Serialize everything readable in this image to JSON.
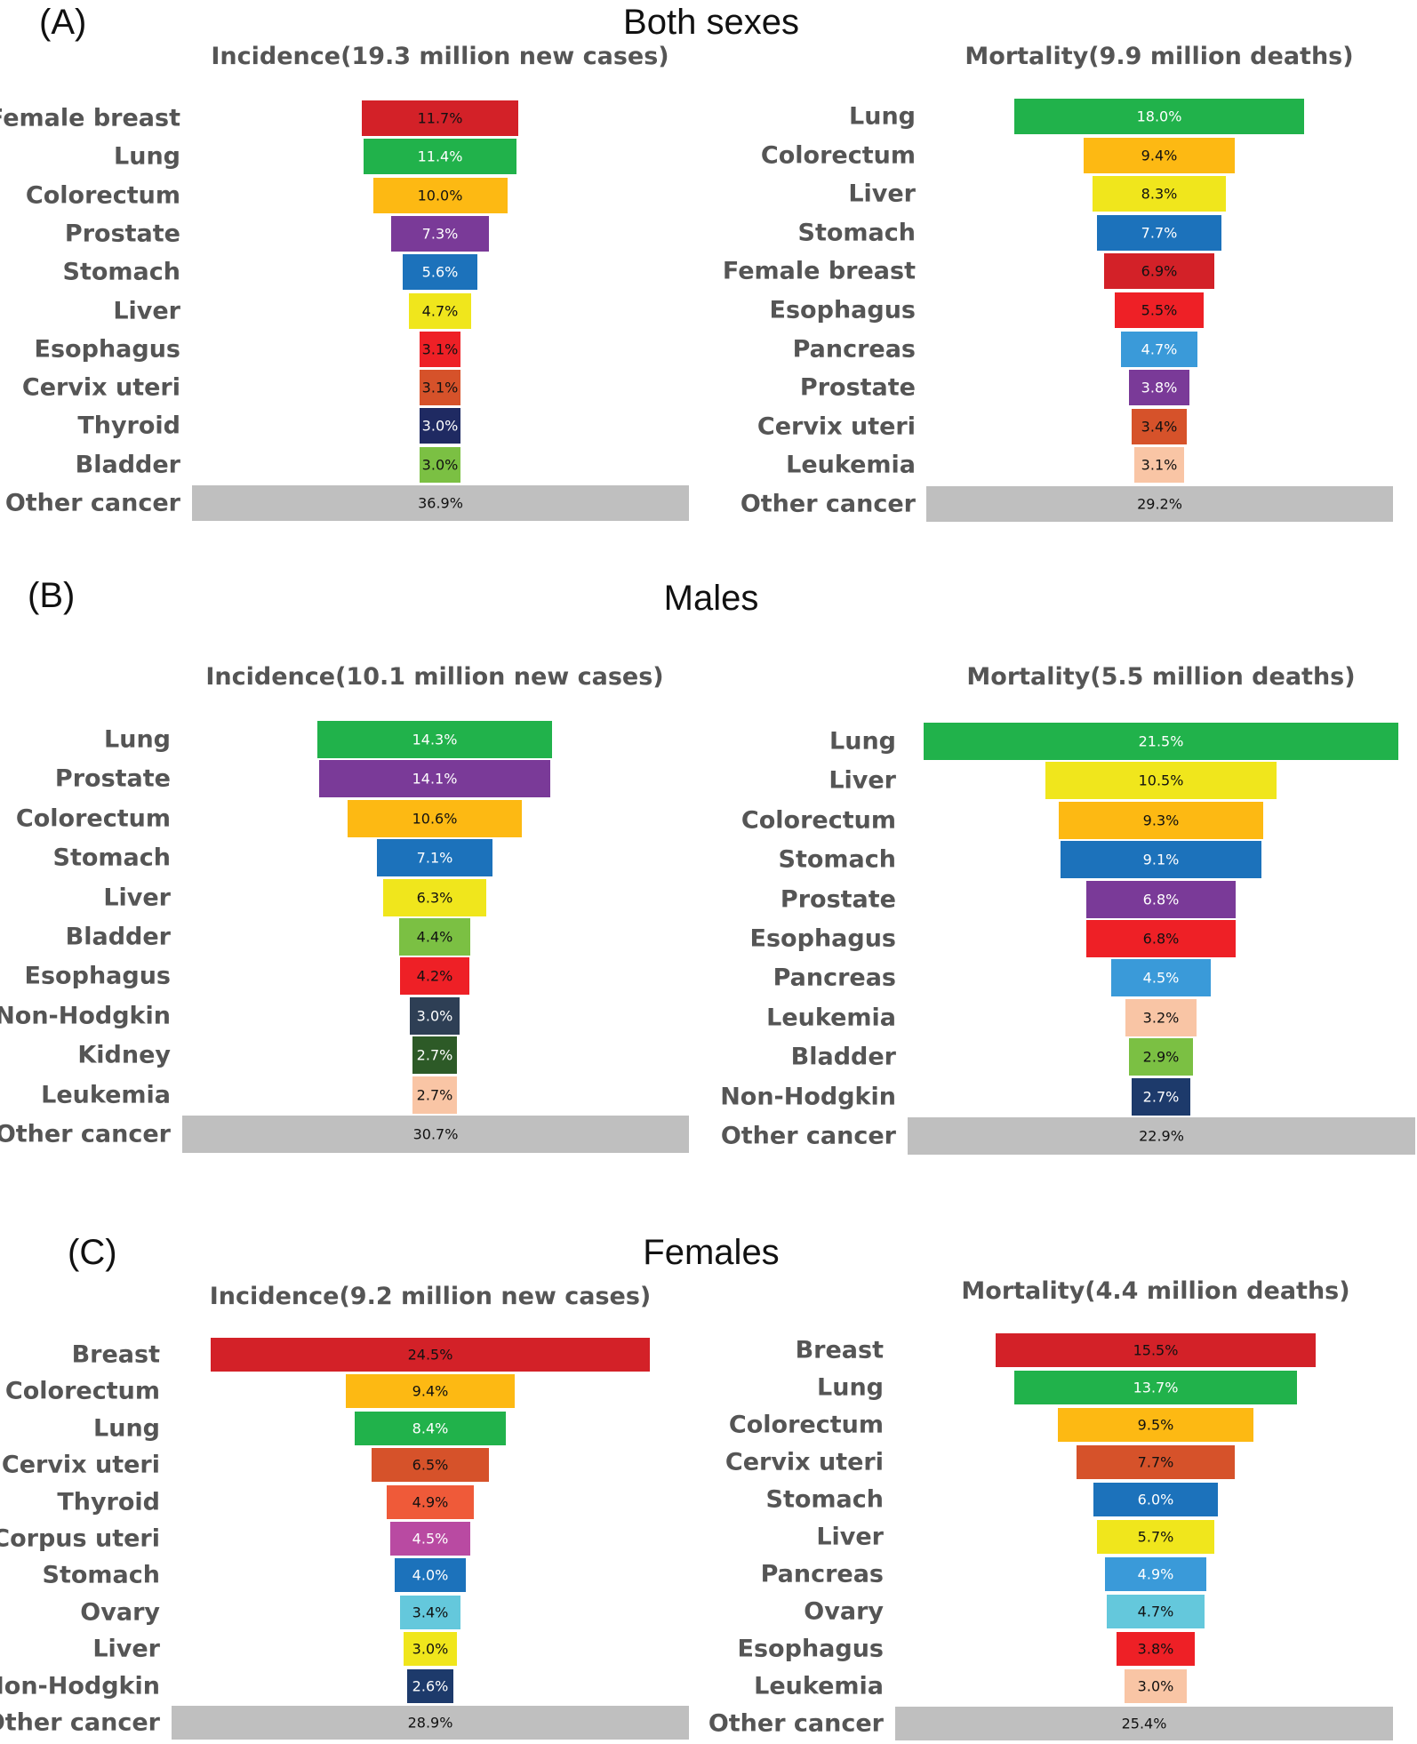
{
  "panels": [
    {
      "letter": "(A)",
      "title": "Both sexes"
    },
    {
      "letter": "(B)",
      "title": "Males"
    },
    {
      "letter": "(C)",
      "title": "Females"
    }
  ],
  "colors": {
    "red": "#d32128",
    "brightred": "#ee2026",
    "green": "#21b24b",
    "orange": "#fdb913",
    "purple": "#7a3a98",
    "blue": "#1c72bb",
    "yellow": "#f0e61c",
    "orangered": "#d6522a",
    "navy": "#1f2a62",
    "lightgreen": "#7bc043",
    "skyblue": "#3a9ad9",
    "peach": "#f9c5a5",
    "slate": "#2e3f55",
    "darkgreen": "#2d5a27",
    "coral": "#ef5a39",
    "magenta": "#b94aa2",
    "cyan": "#64c8dc",
    "darknavy": "#1d3a6b",
    "gray": "#bfbfbf"
  },
  "chart_data": [
    {
      "type": "bar",
      "panel": "(A)",
      "title": "Incidence(19.3 million new cases)",
      "categories": [
        "Female breast",
        "Lung",
        "Colorectum",
        "Prostate",
        "Stomach",
        "Liver",
        "Esophagus",
        "Cervix uteri",
        "Thyroid",
        "Bladder",
        "Other cancer"
      ],
      "values": [
        11.7,
        11.4,
        10.0,
        7.3,
        5.6,
        4.7,
        3.1,
        3.1,
        3.0,
        3.0,
        36.9
      ],
      "value_labels": [
        "11.7%",
        "11.4%",
        "10.0%",
        "7.3%",
        "5.6%",
        "4.7%",
        "3.1%",
        "3.1%",
        "3.0%",
        "3.0%",
        "36.9%"
      ],
      "colors": [
        "red",
        "green",
        "orange",
        "purple",
        "blue",
        "yellow",
        "brightred",
        "orangered",
        "navy",
        "lightgreen",
        "gray"
      ]
    },
    {
      "type": "bar",
      "panel": "(A)",
      "title": "Mortality(9.9 million deaths)",
      "categories": [
        "Lung",
        "Colorectum",
        "Liver",
        "Stomach",
        "Female breast",
        "Esophagus",
        "Pancreas",
        "Prostate",
        "Cervix uteri",
        "Leukemia",
        "Other cancer"
      ],
      "values": [
        18.0,
        9.4,
        8.3,
        7.7,
        6.9,
        5.5,
        4.7,
        3.8,
        3.4,
        3.1,
        29.2
      ],
      "value_labels": [
        "18.0%",
        "9.4%",
        "8.3%",
        "7.7%",
        "6.9%",
        "5.5%",
        "4.7%",
        "3.8%",
        "3.4%",
        "3.1%",
        "29.2%"
      ],
      "colors": [
        "green",
        "orange",
        "yellow",
        "blue",
        "red",
        "brightred",
        "skyblue",
        "purple",
        "orangered",
        "peach",
        "gray"
      ]
    },
    {
      "type": "bar",
      "panel": "(B)",
      "title": "Incidence(10.1 million new cases)",
      "categories": [
        "Lung",
        "Prostate",
        "Colorectum",
        "Stomach",
        "Liver",
        "Bladder",
        "Esophagus",
        "Non-Hodgkin",
        "Kidney",
        "Leukemia",
        "Other cancer"
      ],
      "values": [
        14.3,
        14.1,
        10.6,
        7.1,
        6.3,
        4.4,
        4.2,
        3.0,
        2.7,
        2.7,
        30.7
      ],
      "value_labels": [
        "14.3%",
        "14.1%",
        "10.6%",
        "7.1%",
        "6.3%",
        "4.4%",
        "4.2%",
        "3.0%",
        "2.7%",
        "2.7%",
        "30.7%"
      ],
      "colors": [
        "green",
        "purple",
        "orange",
        "blue",
        "yellow",
        "lightgreen",
        "brightred",
        "slate",
        "darkgreen",
        "peach",
        "gray"
      ]
    },
    {
      "type": "bar",
      "panel": "(B)",
      "title": "Mortality(5.5 million deaths)",
      "categories": [
        "Lung",
        "Liver",
        "Colorectum",
        "Stomach",
        "Prostate",
        "Esophagus",
        "Pancreas",
        "Leukemia",
        "Bladder",
        "Non-Hodgkin",
        "Other cancer"
      ],
      "values": [
        21.5,
        10.5,
        9.3,
        9.1,
        6.8,
        6.8,
        4.5,
        3.2,
        2.9,
        2.7,
        22.9
      ],
      "value_labels": [
        "21.5%",
        "10.5%",
        "9.3%",
        "9.1%",
        "6.8%",
        "6.8%",
        "4.5%",
        "3.2%",
        "2.9%",
        "2.7%",
        "22.9%"
      ],
      "colors": [
        "green",
        "yellow",
        "orange",
        "blue",
        "purple",
        "brightred",
        "skyblue",
        "peach",
        "lightgreen",
        "darknavy",
        "gray"
      ]
    },
    {
      "type": "bar",
      "panel": "(C)",
      "title": "Incidence(9.2 million new cases)",
      "categories": [
        "Breast",
        "Colorectum",
        "Lung",
        "Cervix uteri",
        "Thyroid",
        "Corpus uteri",
        "Stomach",
        "Ovary",
        "Liver",
        "Non-Hodgkin",
        "Other cancer"
      ],
      "values": [
        24.5,
        9.4,
        8.4,
        6.5,
        4.9,
        4.5,
        4.0,
        3.4,
        3.0,
        2.6,
        28.9
      ],
      "value_labels": [
        "24.5%",
        "9.4%",
        "8.4%",
        "6.5%",
        "4.9%",
        "4.5%",
        "4.0%",
        "3.4%",
        "3.0%",
        "2.6%",
        "28.9%"
      ],
      "colors": [
        "red",
        "orange",
        "green",
        "orangered",
        "coral",
        "magenta",
        "blue",
        "cyan",
        "yellow",
        "darknavy",
        "gray"
      ]
    },
    {
      "type": "bar",
      "panel": "(C)",
      "title": "Mortality(4.4 million deaths)",
      "categories": [
        "Breast",
        "Lung",
        "Colorectum",
        "Cervix uteri",
        "Stomach",
        "Liver",
        "Pancreas",
        "Ovary",
        "Esophagus",
        "Leukemia",
        "Other cancer"
      ],
      "values": [
        15.5,
        13.7,
        9.5,
        7.7,
        6.0,
        5.7,
        4.9,
        4.7,
        3.8,
        3.0,
        25.4
      ],
      "value_labels": [
        "15.5%",
        "13.7%",
        "9.5%",
        "7.7%",
        "6.0%",
        "5.7%",
        "4.9%",
        "4.7%",
        "3.8%",
        "3.0%",
        "25.4%"
      ],
      "colors": [
        "red",
        "green",
        "orange",
        "orangered",
        "blue",
        "yellow",
        "skyblue",
        "cyan",
        "brightred",
        "peach",
        "gray"
      ]
    }
  ]
}
